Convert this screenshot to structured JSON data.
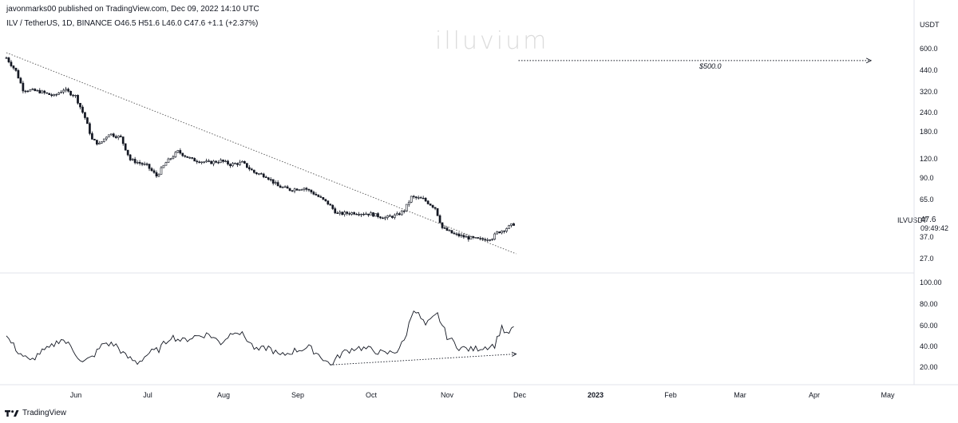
{
  "header": {
    "publisher": "javonmarks00 published on TradingView.com, Dec 09, 2022 14:10 UTC",
    "symbol_line": "ILV / TetherUS, 1D, BINANCE  O46.5  H51.6  L46.0  C47.6  +1.1 (+2.37%)",
    "watermark": "illuvium"
  },
  "footer": {
    "brand": "TradingView"
  },
  "chart_data": [
    {
      "type": "candlestick",
      "title": "ILV / TetherUS, 1D, BINANCE",
      "ohlc_last": {
        "open": 46.5,
        "high": 51.6,
        "low": 46.0,
        "close": 47.6,
        "change": 1.1,
        "change_pct": "+2.37%"
      },
      "y_unit": "USDT",
      "y_scale": "log",
      "y_ticks": [
        "600.0",
        "440.0",
        "320.0",
        "240.0",
        "180.0",
        "120.0",
        "90.0",
        "65.0",
        "47.6",
        "37.0",
        "27.0"
      ],
      "symbol_label": "ILVUSDT",
      "last_price": "47.6",
      "countdown": "09:49:42",
      "x_ticks": [
        "Jun",
        "Jul",
        "Aug",
        "Sep",
        "Oct",
        "Nov",
        "Dec",
        "2023",
        "Feb",
        "Mar",
        "Apr",
        "May"
      ],
      "x_range": [
        "2022-05-10",
        "2023-05-15"
      ],
      "price_path": [
        [
          "2022-05-10",
          520
        ],
        [
          "2022-05-14",
          430
        ],
        [
          "2022-05-17",
          330
        ],
        [
          "2022-05-24",
          320
        ],
        [
          "2022-05-30",
          300
        ],
        [
          "2022-06-03",
          330
        ],
        [
          "2022-06-08",
          300
        ],
        [
          "2022-06-12",
          220
        ],
        [
          "2022-06-15",
          160
        ],
        [
          "2022-06-18",
          150
        ],
        [
          "2022-06-22",
          175
        ],
        [
          "2022-06-27",
          165
        ],
        [
          "2022-07-01",
          120
        ],
        [
          "2022-07-08",
          110
        ],
        [
          "2022-07-12",
          95
        ],
        [
          "2022-07-16",
          115
        ],
        [
          "2022-07-21",
          135
        ],
        [
          "2022-07-27",
          120
        ],
        [
          "2022-08-03",
          115
        ],
        [
          "2022-08-08",
          118
        ],
        [
          "2022-08-12",
          112
        ],
        [
          "2022-08-17",
          115
        ],
        [
          "2022-08-22",
          100
        ],
        [
          "2022-08-27",
          95
        ],
        [
          "2022-09-01",
          82
        ],
        [
          "2022-09-06",
          78
        ],
        [
          "2022-09-12",
          80
        ],
        [
          "2022-09-16",
          74
        ],
        [
          "2022-09-22",
          64
        ],
        [
          "2022-09-26",
          55
        ],
        [
          "2022-10-03",
          56
        ],
        [
          "2022-10-10",
          55
        ],
        [
          "2022-10-16",
          52
        ],
        [
          "2022-10-21",
          54
        ],
        [
          "2022-10-24",
          58
        ],
        [
          "2022-10-27",
          70
        ],
        [
          "2022-11-01",
          68
        ],
        [
          "2022-11-06",
          60
        ],
        [
          "2022-11-09",
          45
        ],
        [
          "2022-11-14",
          41
        ],
        [
          "2022-11-20",
          39
        ],
        [
          "2022-11-25",
          38
        ],
        [
          "2022-11-30",
          39
        ],
        [
          "2022-12-02",
          42
        ],
        [
          "2022-12-05",
          44
        ],
        [
          "2022-12-09",
          47.6
        ]
      ],
      "trendline": {
        "from": [
          "2022-05-10",
          560
        ],
        "to": [
          "2022-12-10",
          31
        ],
        "style": "dotted"
      },
      "target": {
        "label": "$500.0",
        "value": 500,
        "from": "2022-12-11",
        "to": "2023-05-08",
        "style": "dotted-arrow"
      }
    },
    {
      "type": "line",
      "title": "",
      "y_ticks": [
        "100.00",
        "80.00",
        "60.00",
        "40.00",
        "20.00"
      ],
      "y_range": [
        10,
        105
      ],
      "values": [
        [
          "2022-05-10",
          48
        ],
        [
          "2022-05-15",
          34
        ],
        [
          "2022-05-20",
          25
        ],
        [
          "2022-05-24",
          33
        ],
        [
          "2022-05-28",
          37
        ],
        [
          "2022-06-02",
          46
        ],
        [
          "2022-06-06",
          39
        ],
        [
          "2022-06-11",
          24
        ],
        [
          "2022-06-15",
          29
        ],
        [
          "2022-06-20",
          42
        ],
        [
          "2022-06-25",
          40
        ],
        [
          "2022-06-29",
          30
        ],
        [
          "2022-07-04",
          24
        ],
        [
          "2022-07-09",
          33
        ],
        [
          "2022-07-13",
          36
        ],
        [
          "2022-07-18",
          48
        ],
        [
          "2022-07-23",
          44
        ],
        [
          "2022-07-28",
          48
        ],
        [
          "2022-08-03",
          50
        ],
        [
          "2022-08-08",
          42
        ],
        [
          "2022-08-14",
          54
        ],
        [
          "2022-08-18",
          48
        ],
        [
          "2022-08-23",
          35
        ],
        [
          "2022-08-28",
          38
        ],
        [
          "2022-09-02",
          30
        ],
        [
          "2022-09-08",
          35
        ],
        [
          "2022-09-14",
          38
        ],
        [
          "2022-09-19",
          30
        ],
        [
          "2022-09-23",
          22
        ],
        [
          "2022-09-28",
          33
        ],
        [
          "2022-10-04",
          38
        ],
        [
          "2022-10-10",
          36
        ],
        [
          "2022-10-16",
          32
        ],
        [
          "2022-10-21",
          35
        ],
        [
          "2022-10-24",
          44
        ],
        [
          "2022-10-28",
          74
        ],
        [
          "2022-11-02",
          58
        ],
        [
          "2022-11-07",
          68
        ],
        [
          "2022-11-11",
          48
        ],
        [
          "2022-11-16",
          38
        ],
        [
          "2022-11-21",
          36
        ],
        [
          "2022-11-26",
          38
        ],
        [
          "2022-12-01",
          40
        ],
        [
          "2022-12-04",
          57
        ],
        [
          "2022-12-06",
          49
        ],
        [
          "2022-12-09",
          57
        ]
      ],
      "divergence_line": {
        "from": [
          "2022-09-23",
          22
        ],
        "to": [
          "2022-12-10",
          32
        ],
        "style": "dotted-arrow"
      }
    }
  ]
}
